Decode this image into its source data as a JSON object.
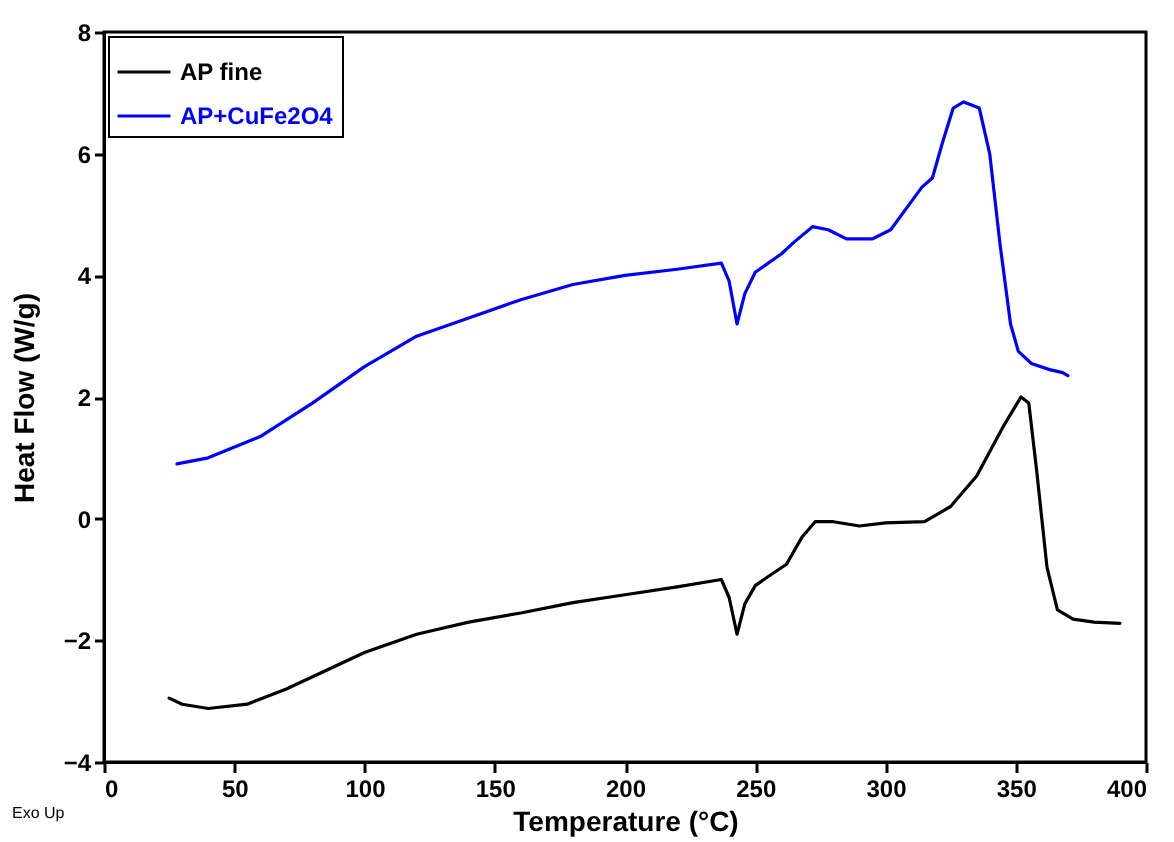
{
  "chart_data": {
    "type": "line",
    "xlabel": "Temperature (°C)",
    "ylabel": "Heat Flow (W/g)",
    "annotations": [
      "Exo Up"
    ],
    "xlim": [
      0,
      400
    ],
    "xticks": [
      0,
      50,
      100,
      150,
      200,
      250,
      300,
      350,
      400
    ],
    "ylim": [
      -4,
      8
    ],
    "yticks": [
      -4,
      -2,
      0,
      2,
      4,
      6,
      8
    ],
    "grid": false,
    "legend": "top left",
    "series": [
      {
        "name": "AP fine",
        "color": "#000000",
        "x": [
          25,
          30,
          40,
          55,
          70,
          85,
          100,
          120,
          140,
          160,
          180,
          200,
          220,
          237,
          240,
          243,
          246,
          250,
          255,
          262,
          268,
          273,
          280,
          290,
          300,
          315,
          325,
          335,
          345,
          352,
          355,
          358,
          362,
          366,
          372,
          380,
          390
        ],
        "values": [
          -2.95,
          -3.05,
          -3.12,
          -3.05,
          -2.8,
          -2.5,
          -2.2,
          -1.9,
          -1.7,
          -1.55,
          -1.38,
          -1.25,
          -1.12,
          -1.0,
          -1.3,
          -1.9,
          -1.4,
          -1.1,
          -0.95,
          -0.75,
          -0.3,
          -0.05,
          -0.05,
          -0.12,
          -0.07,
          -0.05,
          0.2,
          0.7,
          1.5,
          2.0,
          1.9,
          0.8,
          -0.8,
          -1.5,
          -1.65,
          -1.7,
          -1.72
        ]
      },
      {
        "name": "AP+CuFe2O4",
        "color": "#0000ff",
        "x": [
          28,
          40,
          60,
          80,
          100,
          120,
          140,
          160,
          180,
          200,
          220,
          237,
          240,
          243,
          246,
          250,
          260,
          265,
          272,
          278,
          285,
          295,
          302,
          308,
          314,
          318,
          322,
          326,
          330,
          336,
          340,
          344,
          348,
          351,
          356,
          363,
          368,
          370
        ],
        "values": [
          0.9,
          1.0,
          1.35,
          1.9,
          2.5,
          3.0,
          3.3,
          3.6,
          3.85,
          4.0,
          4.1,
          4.2,
          3.9,
          3.2,
          3.7,
          4.05,
          4.35,
          4.55,
          4.8,
          4.75,
          4.6,
          4.6,
          4.75,
          5.1,
          5.45,
          5.6,
          6.2,
          6.75,
          6.85,
          6.75,
          6.0,
          4.5,
          3.2,
          2.75,
          2.55,
          2.45,
          2.4,
          2.35
        ]
      }
    ]
  }
}
